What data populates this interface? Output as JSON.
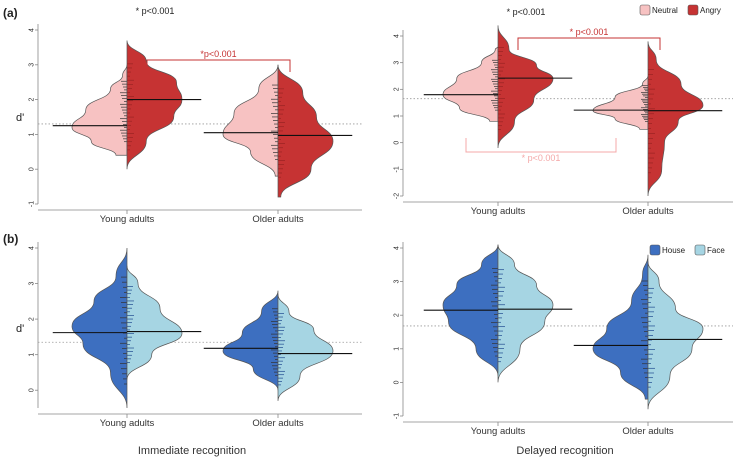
{
  "figure": {
    "row_labels": [
      "(a)",
      "(b)"
    ],
    "captions": [
      "Immediate recognition",
      "Delayed recognition"
    ]
  },
  "legends": {
    "emotion": [
      {
        "name": "Neutral",
        "color": "#f7c2c2"
      },
      {
        "name": "Angry",
        "color": "#c63333"
      }
    ],
    "category": [
      {
        "name": "House",
        "color": "#3d6fc0"
      },
      {
        "name": "Face",
        "color": "#a6d5e3"
      }
    ]
  },
  "chart_data": [
    {
      "type": "split-violin",
      "panel": "a-immediate",
      "ylabel": "d'",
      "ylim": [
        -1,
        4
      ],
      "yticks": [
        "-1",
        "0",
        "1",
        "2",
        "3",
        "4"
      ],
      "categories": [
        "Young adults",
        "Older adults"
      ],
      "reference_line": 1.3,
      "series": [
        {
          "name": "Neutral",
          "side": "left",
          "color": "#f7c2c2",
          "means": [
            1.25,
            1.05
          ]
        },
        {
          "name": "Angry",
          "side": "right",
          "color": "#c63333",
          "means": [
            2.0,
            0.97
          ]
        }
      ],
      "annotations": [
        {
          "text": "* p<0.001",
          "color": "#222222",
          "category": 0
        },
        {
          "text": "*p<0.001",
          "color": "#c63333",
          "from": 0,
          "to": 1
        }
      ]
    },
    {
      "type": "split-violin",
      "panel": "a-delayed",
      "ylabel": "",
      "ylim": [
        -2,
        4
      ],
      "yticks": [
        "-2",
        "-1",
        "0",
        "1",
        "2",
        "3",
        "4"
      ],
      "categories": [
        "Young adults",
        "Older adults"
      ],
      "reference_line": 1.65,
      "series": [
        {
          "name": "Neutral",
          "side": "left",
          "color": "#f7c2c2",
          "means": [
            1.8,
            1.22
          ]
        },
        {
          "name": "Angry",
          "side": "right",
          "color": "#c63333",
          "means": [
            2.42,
            1.2
          ]
        }
      ],
      "annotations": [
        {
          "text": "* p<0.001",
          "color": "#222222",
          "category": 0
        },
        {
          "text": "* p<0.001",
          "color": "#c63333",
          "from": 0,
          "to": 1
        },
        {
          "text": "* p<0.001",
          "color": "#f4a8a8",
          "from": 0,
          "to": 1,
          "below": true
        }
      ]
    },
    {
      "type": "split-violin",
      "panel": "b-immediate",
      "ylabel": "d'",
      "ylim": [
        -0.5,
        4
      ],
      "yticks": [
        "0",
        "1",
        "2",
        "3",
        "4"
      ],
      "categories": [
        "Young adults",
        "Older adults"
      ],
      "reference_line": 1.35,
      "series": [
        {
          "name": "House",
          "side": "left",
          "color": "#3d6fc0",
          "means": [
            1.62,
            1.18
          ]
        },
        {
          "name": "Face",
          "side": "right",
          "color": "#a6d5e3",
          "means": [
            1.65,
            1.03
          ]
        }
      ],
      "annotations": []
    },
    {
      "type": "split-violin",
      "panel": "b-delayed",
      "ylabel": "",
      "ylim": [
        -1,
        4
      ],
      "yticks": [
        "-1",
        "0",
        "1",
        "2",
        "3",
        "4"
      ],
      "categories": [
        "Young adults",
        "Older adults"
      ],
      "reference_line": 1.68,
      "series": [
        {
          "name": "House",
          "side": "left",
          "color": "#3d6fc0",
          "means": [
            2.15,
            1.1
          ]
        },
        {
          "name": "Face",
          "side": "right",
          "color": "#a6d5e3",
          "means": [
            2.18,
            1.28
          ]
        }
      ],
      "annotations": []
    }
  ]
}
